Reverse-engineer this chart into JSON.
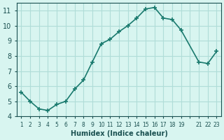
{
  "x": [
    1,
    2,
    3,
    4,
    5,
    6,
    7,
    8,
    9,
    10,
    11,
    12,
    13,
    14,
    15,
    16,
    17,
    18,
    19,
    21,
    22,
    23
  ],
  "y": [
    5.6,
    5.0,
    4.5,
    4.4,
    4.8,
    5.0,
    5.8,
    6.4,
    7.6,
    8.8,
    9.1,
    9.6,
    10.0,
    10.5,
    11.1,
    11.2,
    10.5,
    10.4,
    9.7,
    7.6,
    7.5,
    8.3
  ],
  "line_color": "#1a7a6e",
  "marker": "+",
  "bg_color": "#d8f5f0",
  "grid_color": "#b0ddd8",
  "xlabel": "Humidex (Indice chaleur)",
  "ylim": [
    4,
    11.5
  ],
  "yticks": [
    4,
    5,
    6,
    7,
    8,
    9,
    10,
    11
  ],
  "font_color": "#1a5050"
}
